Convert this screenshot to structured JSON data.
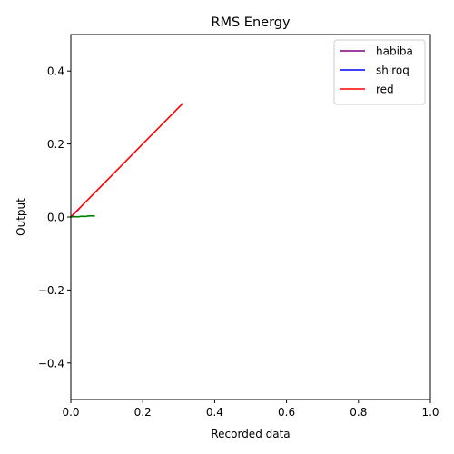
{
  "chart_data": {
    "type": "line",
    "title": "RMS Energy",
    "xlabel": "Recorded data",
    "ylabel": "Output",
    "xlim": [
      0,
      1
    ],
    "ylim": [
      -0.5,
      0.5
    ],
    "xticks": [
      0.0,
      0.2,
      0.4,
      0.6,
      0.8,
      1.0
    ],
    "xtick_labels": [
      "0.0",
      "0.2",
      "0.4",
      "0.6",
      "0.8",
      "1.0"
    ],
    "yticks": [
      -0.4,
      -0.2,
      0.0,
      0.2,
      0.4
    ],
    "ytick_labels": [
      "−0.4",
      "−0.2",
      "0.0",
      "0.2",
      "0.4"
    ],
    "grid": false,
    "legend_position": "top-right",
    "series": [
      {
        "name": "habiba",
        "color": "#800080",
        "x": [
          0.0,
          0.012,
          0.024
        ],
        "y": [
          0.0,
          0.012,
          0.024
        ],
        "in_legend": true
      },
      {
        "name": "shiroq",
        "color": "#0000ff",
        "x": [
          0.0,
          0.01,
          0.02
        ],
        "y": [
          0.0,
          0.01,
          0.02
        ],
        "in_legend": true
      },
      {
        "name": "red",
        "color": "#ff0000",
        "x": [
          0.0,
          0.05,
          0.1,
          0.15,
          0.2,
          0.25,
          0.31
        ],
        "y": [
          0.0,
          0.05,
          0.1,
          0.15,
          0.2,
          0.25,
          0.31
        ],
        "in_legend": true
      },
      {
        "color": "#008000",
        "x": [
          0.0,
          0.01,
          0.02,
          0.03,
          0.04,
          0.05,
          0.065
        ],
        "y": [
          0.0,
          0.001,
          0.0005,
          0.002,
          0.0015,
          0.003,
          0.003
        ],
        "in_legend": false
      }
    ]
  }
}
